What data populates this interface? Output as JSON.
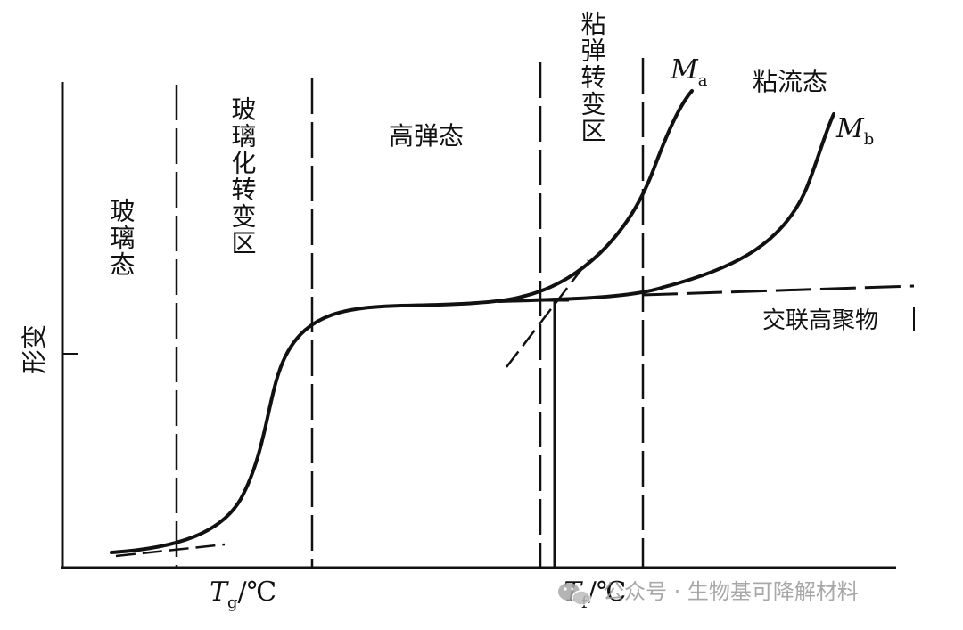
{
  "y_axis_label": "形变",
  "regions": {
    "glassy": "玻璃态",
    "glass_transition": "玻璃化转变区",
    "rubbery": "高弹态",
    "viscoelastic_transition": "粘弹转变区",
    "viscous_flow": "粘流态"
  },
  "curves": {
    "ma_main": "M",
    "ma_sub": "a",
    "mb_main": "M",
    "mb_sub": "b",
    "crosslinked": "交联高聚物"
  },
  "x_marks": {
    "tg_main": "T",
    "tg_sub": "g",
    "tg_unit": "/℃",
    "tf_main": "T",
    "tf_sub": "f",
    "tf_unit": "/℃"
  },
  "watermark": "公众号 · 生物基可降解材料",
  "colors": {
    "ink": "#111111",
    "watermark": "#9a9a9a"
  }
}
